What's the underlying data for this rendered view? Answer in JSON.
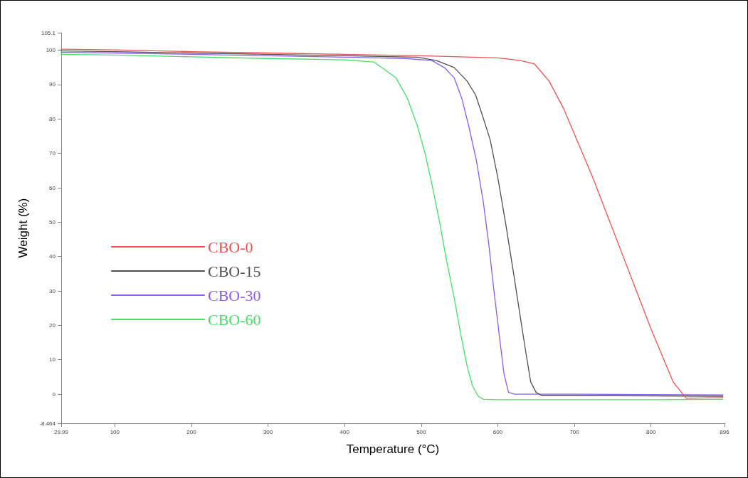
{
  "chart_data": {
    "type": "line",
    "xlabel": "Temperature (°C)",
    "ylabel": "Weight (%)",
    "xlim": [
      29.99,
      896
    ],
    "xticks": [
      29.99,
      100,
      200,
      300,
      400,
      500,
      600,
      700,
      800,
      896
    ],
    "ylim": [
      -8.464,
      105.1
    ],
    "yticks": [
      -8.464,
      0,
      10,
      20,
      30,
      40,
      50,
      60,
      70,
      80,
      90,
      100,
      105.1
    ],
    "grid": false,
    "legend": "left",
    "marker": "none",
    "line_style": "solid",
    "series": [
      {
        "name": "CBO-0",
        "color": "#f0524f",
        "x": [
          29.99,
          100,
          200,
          300,
          400,
          500,
          600,
          630,
          648,
          667,
          686,
          705,
          724,
          743,
          762,
          781,
          800,
          815,
          829,
          846,
          870,
          894
        ],
        "values": [
          100.3,
          100.1,
          99.6,
          99.2,
          98.8,
          98.4,
          97.8,
          97,
          96,
          91,
          83,
          73,
          63,
          52,
          41,
          30,
          19,
          11,
          3.5,
          -1.2,
          -1.1,
          -1
        ]
      },
      {
        "name": "CBO-15",
        "color": "#505050",
        "x": [
          29.99,
          100,
          200,
          300,
          400,
          495,
          520,
          543,
          560,
          571,
          580,
          590,
          600,
          610,
          620,
          629,
          636,
          643,
          650,
          657,
          700,
          800,
          894
        ],
        "values": [
          99.8,
          99.6,
          99.2,
          98.8,
          98.4,
          98,
          97,
          95,
          91,
          87,
          81,
          74,
          63,
          50,
          36,
          23,
          13,
          3.5,
          0.5,
          -0.4,
          -0.4,
          -0.5,
          -0.6
        ]
      },
      {
        "name": "CBO-30",
        "color": "#8a5cf0",
        "x": [
          29.99,
          100,
          200,
          300,
          400,
          480,
          514,
          530,
          543,
          553,
          562,
          572,
          581,
          588,
          595,
          602,
          608,
          614,
          622,
          629,
          700,
          800,
          894
        ],
        "values": [
          99.4,
          99.2,
          98.8,
          98.4,
          98,
          97.6,
          97,
          95,
          92,
          86,
          78,
          68,
          56,
          44,
          30,
          17,
          6,
          0.5,
          0,
          0,
          0,
          -0.1,
          -0.2
        ]
      },
      {
        "name": "CBO-60",
        "color": "#45e06a",
        "x": [
          29.99,
          100,
          200,
          300,
          400,
          438,
          467,
          482,
          495,
          505,
          514,
          524,
          533,
          543,
          552,
          560,
          567,
          574,
          581,
          600,
          700,
          800,
          894
        ],
        "values": [
          98.8,
          98.6,
          98.1,
          97.6,
          97.2,
          96.6,
          92,
          86,
          78,
          70,
          61,
          50,
          39,
          28,
          17,
          8,
          2.4,
          -0.5,
          -1.5,
          -1.6,
          -1.6,
          -1.6,
          -1.5
        ]
      }
    ]
  }
}
